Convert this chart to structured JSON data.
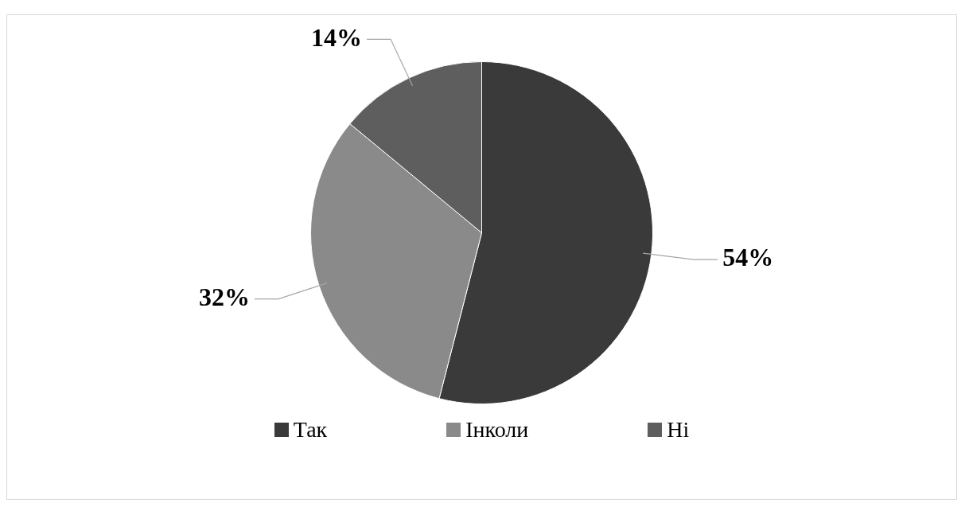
{
  "chart_data": {
    "type": "pie",
    "categories": [
      "Так",
      "Інколи",
      "Ні"
    ],
    "values": [
      54,
      32,
      14
    ],
    "colors": [
      "#3a3a3a",
      "#8a8a8a",
      "#5e5e5e"
    ],
    "value_labels": [
      "54%",
      "32%",
      "14%"
    ],
    "legend": "bottom"
  }
}
